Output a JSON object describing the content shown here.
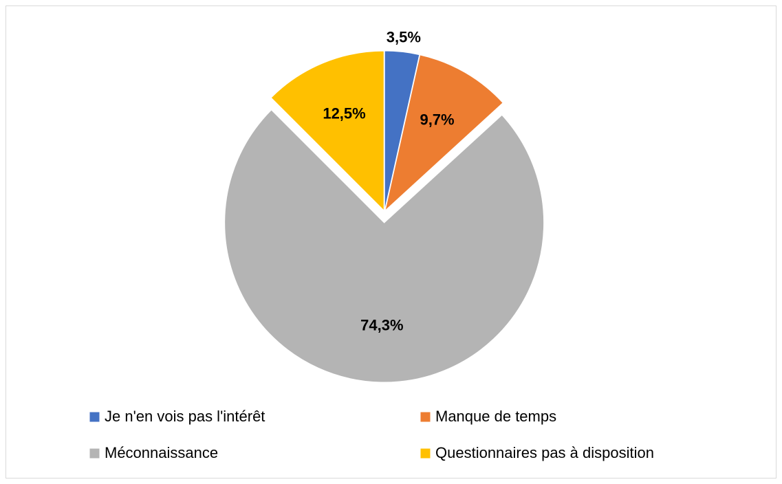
{
  "chart_data": {
    "type": "pie",
    "categories": [
      "Je n'en vois pas l'intérêt",
      "Manque de temps",
      "Méconnaissance",
      "Questionnaires pas à disposition"
    ],
    "values": [
      3.5,
      9.7,
      74.3,
      12.5
    ],
    "value_labels": [
      "3,5%",
      "9,7%",
      "74,3%",
      "12,5%"
    ],
    "colors": [
      "#4472c4",
      "#ed7d31",
      "#b4b4b4",
      "#ffc000"
    ],
    "legend": "bottom"
  }
}
